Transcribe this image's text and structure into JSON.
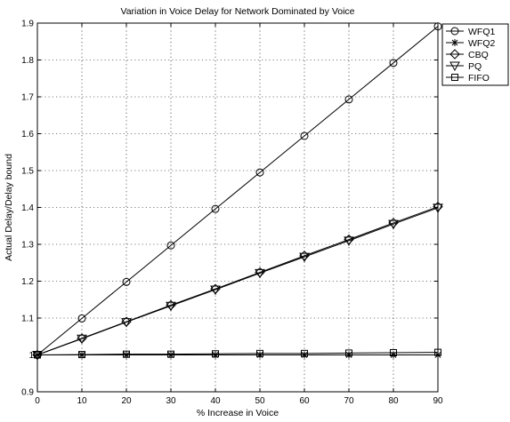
{
  "chart_data": {
    "type": "line",
    "title": "Variation in Voice Delay for Network Dominated by Voice",
    "xlabel": "% Increase in Voice",
    "ylabel": "Actual Delay/Delay bound",
    "xlim": [
      0,
      90
    ],
    "ylim": [
      0.9,
      1.9
    ],
    "x_ticks": [
      "0",
      "10",
      "20",
      "30",
      "40",
      "50",
      "60",
      "70",
      "80",
      "90"
    ],
    "y_ticks": [
      "0.9",
      "1",
      "1.1",
      "1.2",
      "1.3",
      "1.4",
      "1.5",
      "1.6",
      "1.7",
      "1.8",
      "1.9"
    ],
    "grid": true,
    "legend_position": "right-top outside",
    "x": [
      0,
      10,
      20,
      30,
      40,
      50,
      60,
      70,
      80,
      90
    ],
    "series": [
      {
        "name": "WFQ1",
        "marker": "circle",
        "values": [
          1.0,
          1.099,
          1.198,
          1.297,
          1.396,
          1.495,
          1.594,
          1.693,
          1.792,
          1.891
        ]
      },
      {
        "name": "WFQ2",
        "marker": "star",
        "values": [
          1.0,
          1.0,
          1.0,
          1.0,
          1.0,
          1.0,
          1.0,
          1.0,
          1.0,
          1.0
        ]
      },
      {
        "name": "CBQ",
        "marker": "diamond",
        "values": [
          1.0,
          1.045,
          1.09,
          1.135,
          1.179,
          1.224,
          1.269,
          1.313,
          1.358,
          1.402
        ]
      },
      {
        "name": "PQ",
        "marker": "triangle-down",
        "values": [
          1.0,
          1.044,
          1.089,
          1.133,
          1.177,
          1.222,
          1.266,
          1.31,
          1.355,
          1.399
        ]
      },
      {
        "name": "FIFO",
        "marker": "square",
        "values": [
          1.0,
          1.001,
          1.002,
          1.002,
          1.003,
          1.004,
          1.004,
          1.005,
          1.006,
          1.007
        ]
      }
    ]
  }
}
